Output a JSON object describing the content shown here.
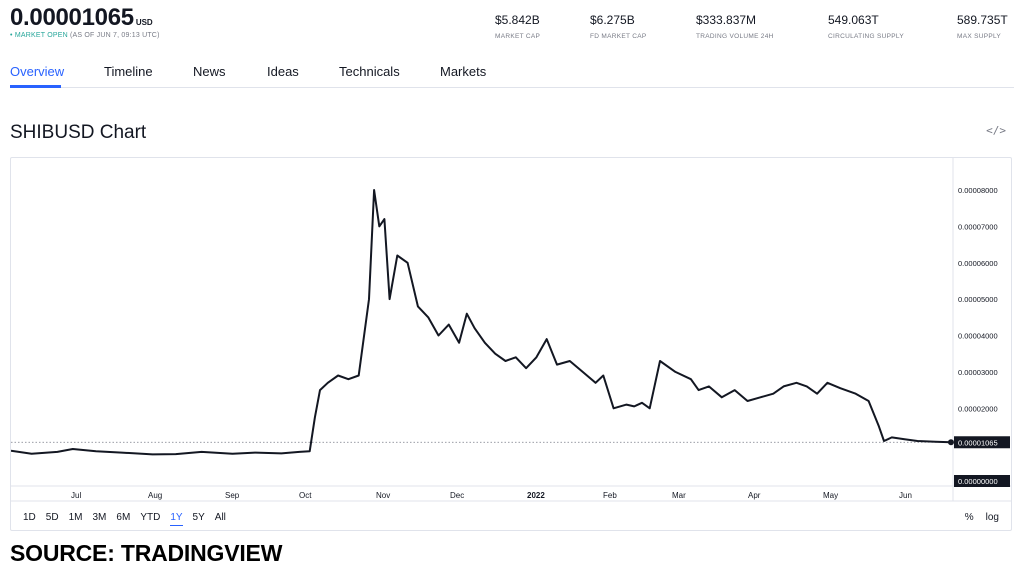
{
  "header": {
    "price": "0.00001065",
    "currency": "USD",
    "status_dot": "•",
    "market_open": "MARKET OPEN",
    "as_of": "(AS OF JUN 7, 09:13 UTC)"
  },
  "stats": [
    {
      "value": "$5.842B",
      "label": "MARKET CAP"
    },
    {
      "value": "$6.275B",
      "label": "FD MARKET CAP"
    },
    {
      "value": "$333.837M",
      "label": "TRADING VOLUME 24H"
    },
    {
      "value": "549.063T",
      "label": "CIRCULATING SUPPLY"
    },
    {
      "value": "589.735T",
      "label": "MAX SUPPLY"
    }
  ],
  "tabs": [
    {
      "label": "Overview",
      "active": true
    },
    {
      "label": "Timeline"
    },
    {
      "label": "News"
    },
    {
      "label": "Ideas"
    },
    {
      "label": "Technicals"
    },
    {
      "label": "Markets"
    }
  ],
  "chart_title": "SHIBUSD Chart",
  "embed_icon": "</>",
  "ranges": [
    "1D",
    "5D",
    "1M",
    "3M",
    "6M",
    "YTD",
    "1Y",
    "5Y",
    "All"
  ],
  "active_range": "1Y",
  "scale_options": [
    "%",
    "log"
  ],
  "source": "SOURCE: TRADINGVIEW",
  "colors": {
    "accent": "#2962ff",
    "line": "#131722",
    "open": "#26a69a"
  },
  "chart_data": {
    "type": "line",
    "title": "SHIBUSD Chart",
    "ylim": [
      0,
      8e-05
    ],
    "y_ticks": [
      "0.00008000",
      "0.00007000",
      "0.00006000",
      "0.00005000",
      "0.00004000",
      "0.00003000",
      "0.00002000",
      "0.00000000"
    ],
    "x_ticks": [
      "Jul",
      "Aug",
      "Sep",
      "Oct",
      "Nov",
      "Dec",
      "2022",
      "Feb",
      "Mar",
      "Apr",
      "May",
      "Jun"
    ],
    "last_value_label": "0.00001065",
    "last_value": 1.065e-05,
    "x_range": [
      "2021-06-07",
      "2022-06-07"
    ],
    "x": [
      "2021-06-07",
      "2021-06-15",
      "2021-06-25",
      "2021-07-01",
      "2021-07-10",
      "2021-07-20",
      "2021-08-01",
      "2021-08-10",
      "2021-08-20",
      "2021-09-01",
      "2021-09-10",
      "2021-09-20",
      "2021-09-27",
      "2021-10-01",
      "2021-10-03",
      "2021-10-05",
      "2021-10-08",
      "2021-10-12",
      "2021-10-16",
      "2021-10-20",
      "2021-10-24",
      "2021-10-26",
      "2021-10-28",
      "2021-10-30",
      "2021-11-01",
      "2021-11-04",
      "2021-11-08",
      "2021-11-12",
      "2021-11-16",
      "2021-11-20",
      "2021-11-24",
      "2021-11-28",
      "2021-12-01",
      "2021-12-04",
      "2021-12-08",
      "2021-12-12",
      "2021-12-16",
      "2021-12-20",
      "2021-12-24",
      "2021-12-28",
      "2022-01-01",
      "2022-01-05",
      "2022-01-10",
      "2022-01-15",
      "2022-01-20",
      "2022-01-23",
      "2022-01-27",
      "2022-02-01",
      "2022-02-04",
      "2022-02-07",
      "2022-02-10",
      "2022-02-14",
      "2022-02-20",
      "2022-02-26",
      "2022-03-01",
      "2022-03-05",
      "2022-03-10",
      "2022-03-15",
      "2022-03-20",
      "2022-03-25",
      "2022-03-30",
      "2022-04-03",
      "2022-04-08",
      "2022-04-12",
      "2022-04-16",
      "2022-04-20",
      "2022-04-25",
      "2022-05-01",
      "2022-05-06",
      "2022-05-10",
      "2022-05-12",
      "2022-05-15",
      "2022-05-20",
      "2022-05-25",
      "2022-06-01",
      "2022-06-07"
    ],
    "values": [
      8.3e-06,
      7.5e-06,
      8e-06,
      8.8e-06,
      8.2e-06,
      7.8e-06,
      7.3e-06,
      7.4e-06,
      8e-06,
      7.5e-06,
      7.8e-06,
      7.6e-06,
      8e-06,
      8.2e-06,
      1.75e-05,
      2.5e-05,
      2.7e-05,
      2.9e-05,
      2.8e-05,
      2.9e-05,
      5e-05,
      8e-05,
      7e-05,
      7.2e-05,
      5e-05,
      6.2e-05,
      6e-05,
      4.8e-05,
      4.5e-05,
      4e-05,
      4.3e-05,
      3.8e-05,
      4.6e-05,
      4.2e-05,
      3.8e-05,
      3.5e-05,
      3.3e-05,
      3.4e-05,
      3.1e-05,
      3.4e-05,
      3.9e-05,
      3.2e-05,
      3.3e-05,
      3e-05,
      2.7e-05,
      2.9e-05,
      2e-05,
      2.1e-05,
      2.05e-05,
      2.15e-05,
      2e-05,
      3.3e-05,
      3e-05,
      2.8e-05,
      2.5e-05,
      2.6e-05,
      2.3e-05,
      2.5e-05,
      2.2e-05,
      2.3e-05,
      2.4e-05,
      2.6e-05,
      2.7e-05,
      2.6e-05,
      2.4e-05,
      2.7e-05,
      2.55e-05,
      2.4e-05,
      2.2e-05,
      1.5e-05,
      1.1e-05,
      1.2e-05,
      1.15e-05,
      1.1e-05,
      1.08e-05,
      1.065e-05
    ]
  }
}
